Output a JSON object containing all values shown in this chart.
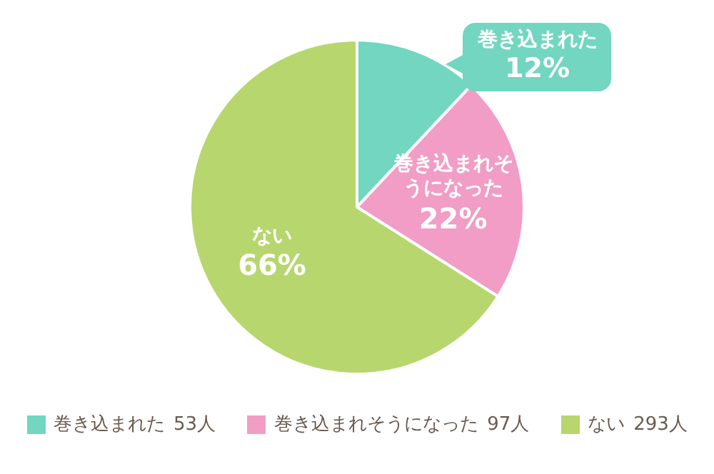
{
  "chart_data": {
    "type": "pie",
    "categories": [
      "巻き込まれた",
      "巻き込まれそうになった",
      "ない"
    ],
    "values": [
      12,
      22,
      66
    ],
    "colors": [
      "#72d6c1",
      "#f19dc5",
      "#b7d66e"
    ],
    "value_labels": [
      "12%",
      "22%",
      "66%"
    ],
    "annotations": [
      "53人",
      "97人",
      "293人"
    ],
    "legend": "bottom"
  }
}
